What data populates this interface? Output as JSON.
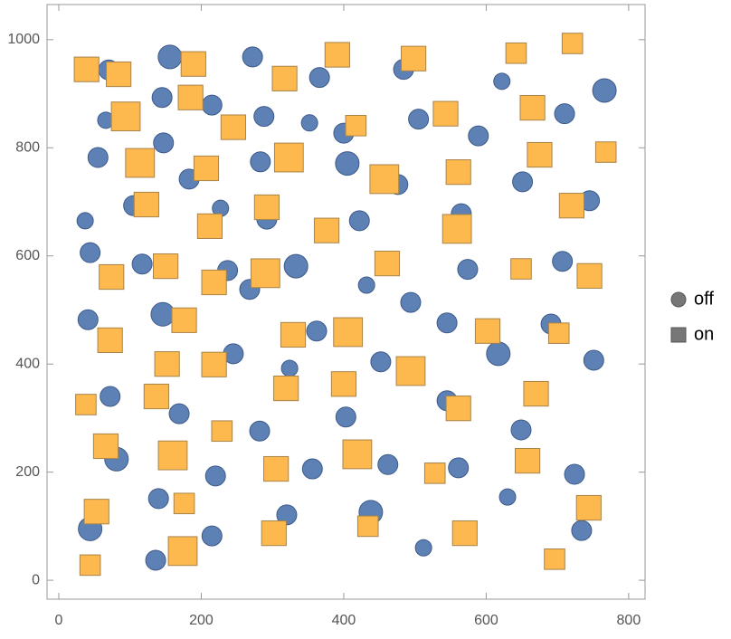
{
  "chart_data": {
    "type": "scatter",
    "xlim": [
      -16.5,
      823
    ],
    "ylim": [
      -35,
      1065
    ],
    "xticks": [
      0,
      200,
      400,
      600,
      800
    ],
    "yticks": [
      0,
      200,
      400,
      600,
      800,
      1000
    ],
    "legend": "right",
    "series": [
      {
        "name": "off",
        "marker": "circle",
        "color": "#5e81b5",
        "x": [
          156,
          70,
          272,
          484,
          366,
          622,
          766,
          145,
          215,
          66,
          288,
          352,
          505,
          710,
          400,
          589,
          147,
          55,
          283,
          405,
          183,
          476,
          651,
          745,
          105,
          227,
          37,
          292,
          422,
          565,
          44,
          117,
          333,
          237,
          574,
          707,
          268,
          432,
          494,
          146,
          41,
          362,
          545,
          691,
          617,
          245,
          751,
          324,
          452,
          72,
          545,
          169,
          403,
          649,
          282,
          81,
          220,
          356,
          462,
          561,
          724,
          140,
          630,
          320,
          438,
          44,
          734,
          215,
          512,
          136
        ],
        "values": [
          968,
          944,
          968,
          945,
          930,
          923,
          906,
          893,
          879,
          851,
          858,
          846,
          853,
          863,
          827,
          822,
          809,
          782,
          774,
          771,
          742,
          732,
          737,
          702,
          693,
          688,
          665,
          668,
          665,
          678,
          606,
          585,
          581,
          573,
          575,
          590,
          538,
          546,
          514,
          492,
          482,
          461,
          476,
          474,
          419,
          419,
          407,
          392,
          404,
          340,
          332,
          308,
          302,
          278,
          276,
          224,
          193,
          206,
          214,
          208,
          196,
          151,
          154,
          121,
          126,
          95,
          92,
          82,
          60,
          37
        ],
        "sizes": [
          3,
          2,
          2,
          2,
          2,
          1,
          3,
          2,
          2,
          1,
          2,
          1,
          2,
          2,
          2,
          2,
          2,
          2,
          2,
          3,
          2,
          2,
          2,
          2,
          2,
          1,
          1,
          2,
          2,
          2,
          2,
          2,
          3,
          2,
          2,
          2,
          2,
          1,
          2,
          3,
          2,
          2,
          2,
          2,
          3,
          2,
          2,
          1,
          2,
          2,
          2,
          2,
          2,
          2,
          2,
          3,
          2,
          2,
          2,
          2,
          2,
          2,
          1,
          2,
          3,
          3,
          2,
          2,
          1,
          2
        ]
      },
      {
        "name": "on",
        "marker": "square",
        "color": "#fdb94d",
        "x": [
          39,
          84,
          189,
          391,
          498,
          642,
          721,
          317,
          185,
          94,
          245,
          417,
          543,
          665,
          114,
          207,
          323,
          457,
          561,
          675,
          768,
          123,
          292,
          212,
          376,
          559,
          720,
          74,
          150,
          218,
          290,
          461,
          649,
          745,
          72,
          176,
          329,
          406,
          602,
          702,
          152,
          218,
          494,
          38,
          137,
          319,
          400,
          561,
          670,
          66,
          160,
          229,
          305,
          419,
          528,
          658,
          53,
          176,
          744,
          302,
          434,
          570,
          44,
          174,
          696
        ],
        "values": [
          945,
          936,
          955,
          972,
          965,
          975,
          993,
          928,
          893,
          858,
          838,
          841,
          863,
          874,
          772,
          762,
          782,
          742,
          755,
          787,
          792,
          695,
          690,
          655,
          647,
          650,
          693,
          561,
          581,
          551,
          568,
          586,
          576,
          563,
          444,
          481,
          454,
          459,
          461,
          457,
          400,
          399,
          387,
          325,
          340,
          355,
          363,
          318,
          345,
          248,
          231,
          276,
          206,
          233,
          198,
          221,
          127,
          142,
          134,
          87,
          100,
          87,
          28,
          54,
          39
        ],
        "sizes": [
          2,
          2,
          2,
          2,
          2,
          1,
          1,
          2,
          2,
          3,
          2,
          1,
          2,
          2,
          3,
          2,
          3,
          3,
          2,
          2,
          1,
          2,
          2,
          2,
          2,
          3,
          2,
          2,
          2,
          2,
          3,
          2,
          1,
          2,
          2,
          2,
          2,
          3,
          2,
          1,
          2,
          2,
          3,
          1,
          2,
          2,
          2,
          2,
          2,
          2,
          3,
          1,
          2,
          3,
          1,
          2,
          2,
          1,
          2,
          2,
          1,
          2,
          1,
          3,
          1
        ]
      }
    ]
  }
}
